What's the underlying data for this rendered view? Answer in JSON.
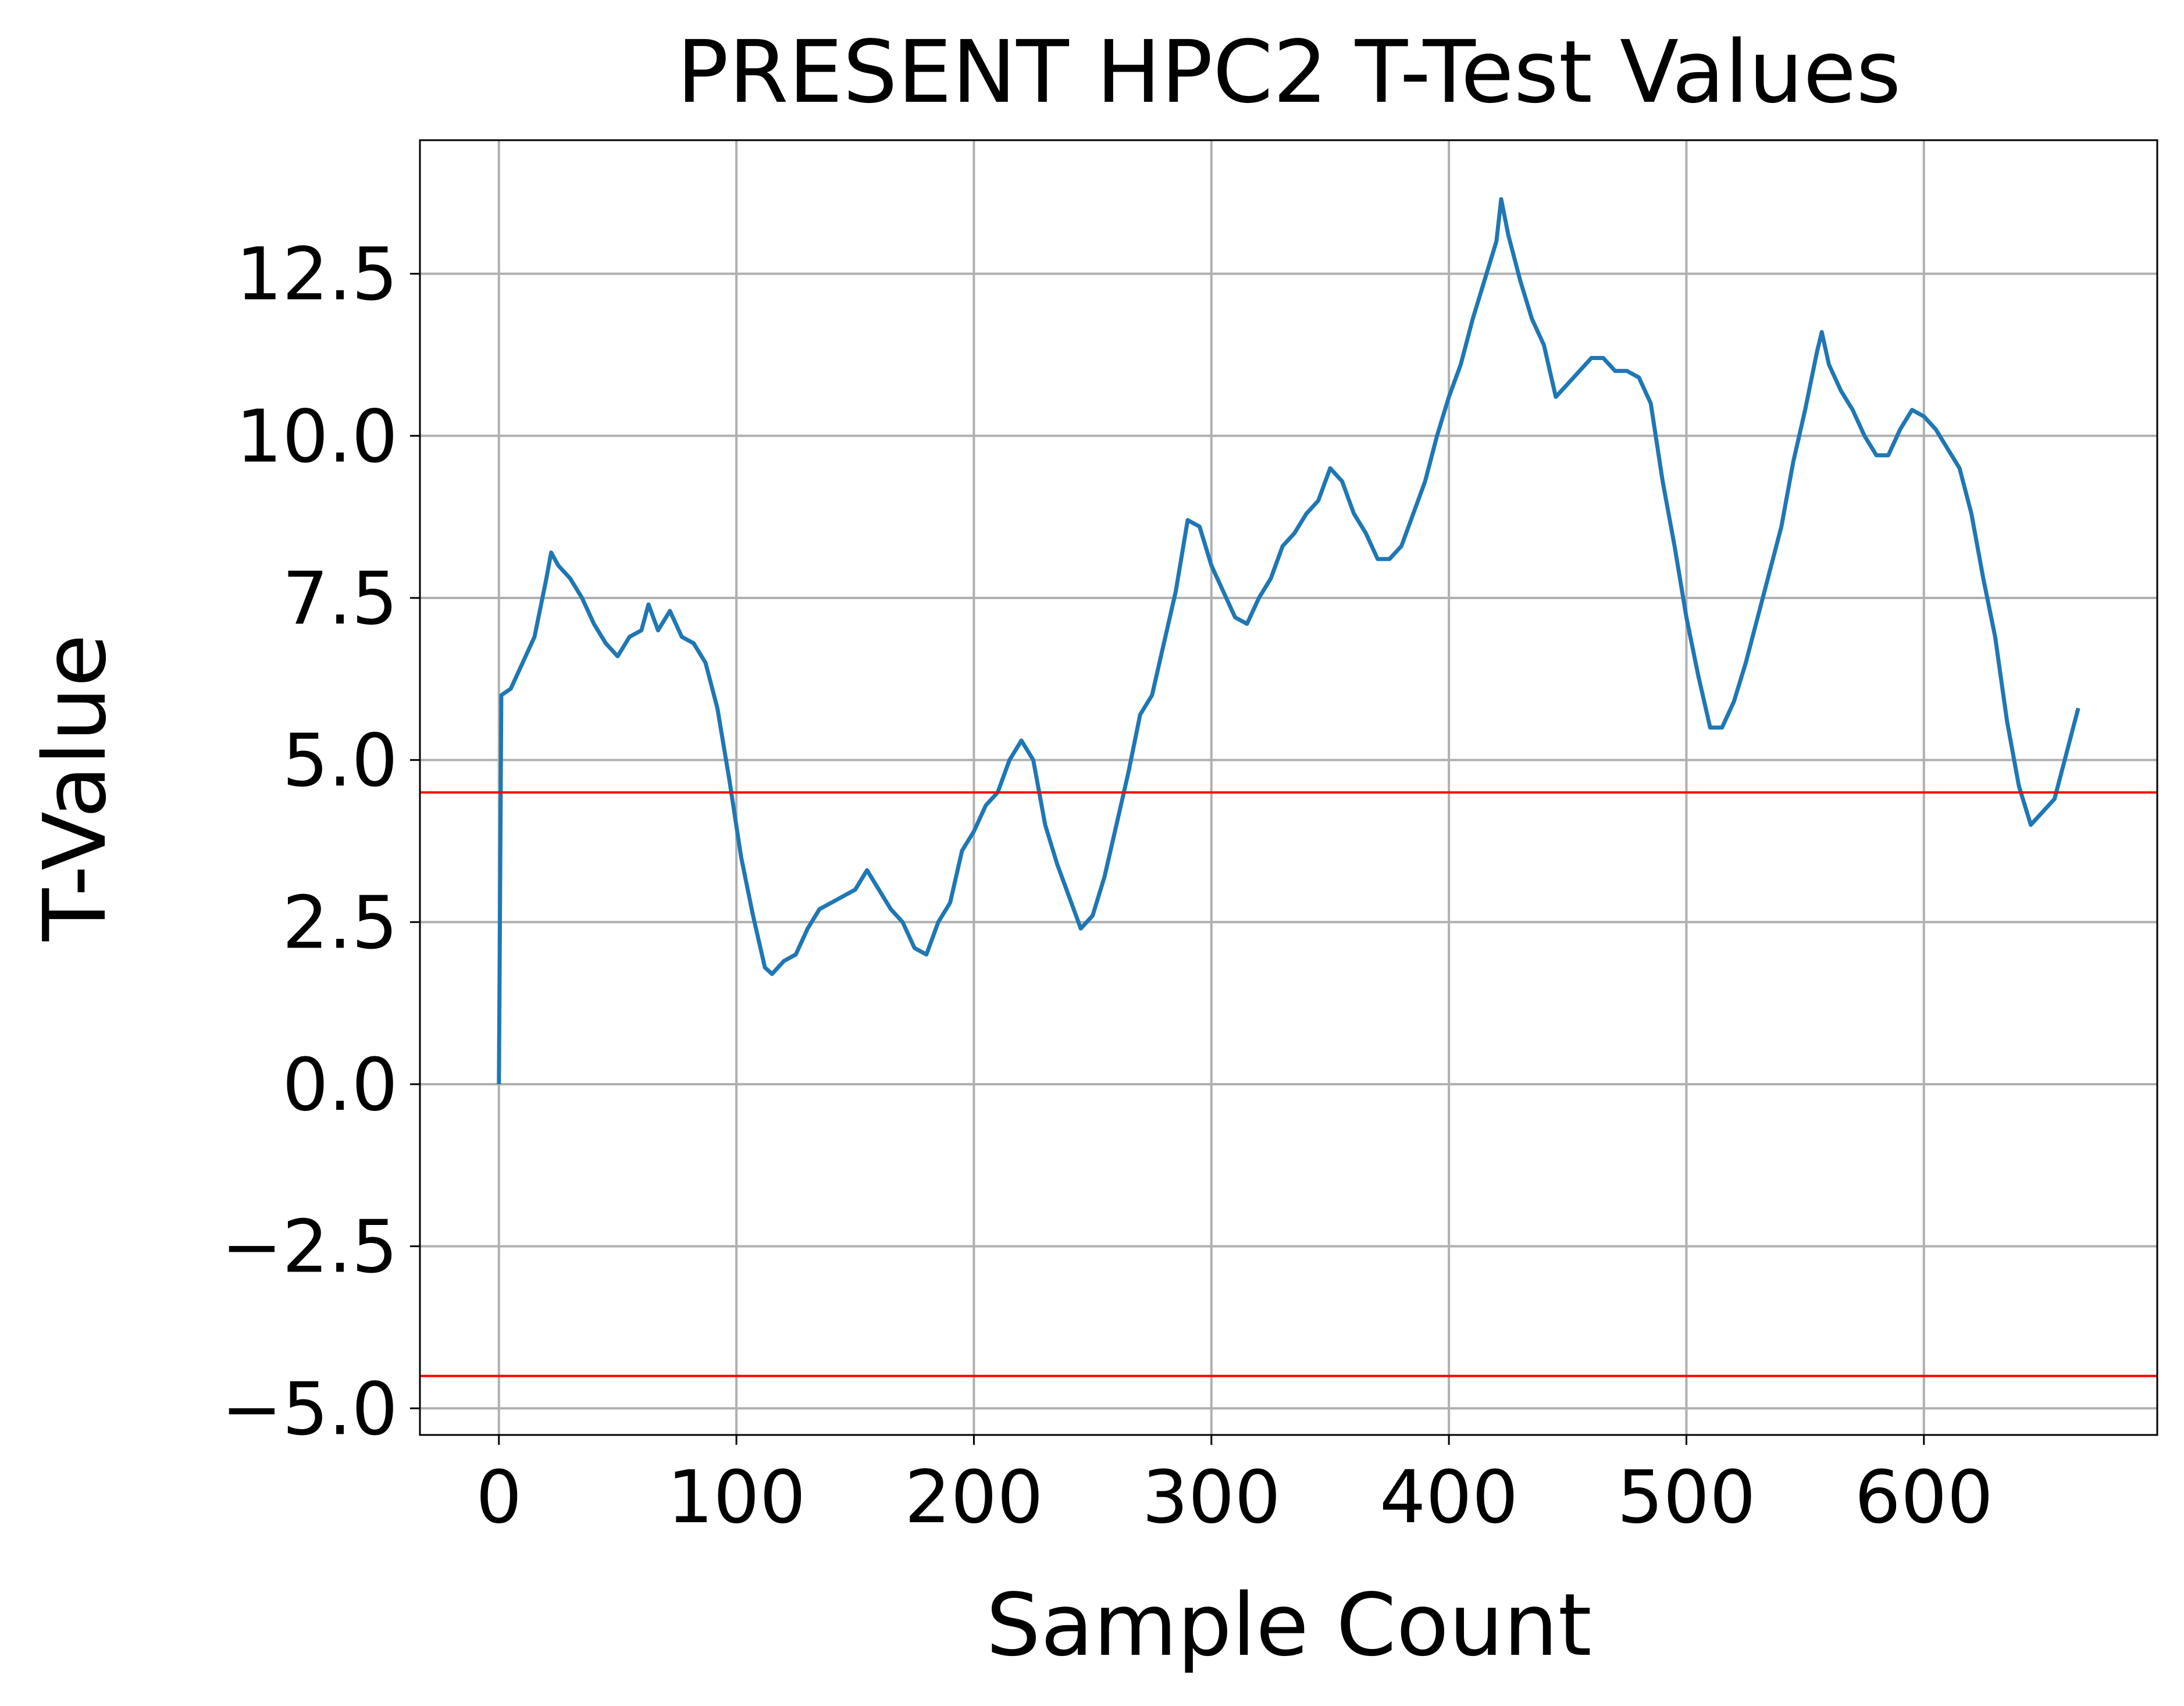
{
  "chart_data": {
    "type": "line",
    "title": "PRESENT HPC2 T-Test Values",
    "xlabel": "Sample Count",
    "ylabel": "T-Value",
    "x": [
      0,
      1,
      5,
      10,
      15,
      20,
      22,
      25,
      30,
      35,
      40,
      45,
      50,
      55,
      60,
      63,
      67,
      72,
      77,
      82,
      87,
      92,
      97,
      102,
      107,
      112,
      115,
      120,
      125,
      130,
      135,
      140,
      145,
      150,
      155,
      160,
      165,
      170,
      175,
      180,
      185,
      190,
      195,
      200,
      205,
      210,
      215,
      220,
      225,
      230,
      235,
      240,
      245,
      250,
      255,
      260,
      265,
      270,
      275,
      280,
      285,
      290,
      295,
      300,
      305,
      310,
      315,
      320,
      325,
      330,
      335,
      340,
      345,
      350,
      355,
      360,
      365,
      370,
      375,
      380,
      385,
      390,
      395,
      400,
      405,
      410,
      415,
      420,
      422,
      425,
      430,
      435,
      440,
      445,
      450,
      455,
      460,
      465,
      470,
      475,
      480,
      485,
      490,
      495,
      500,
      505,
      510,
      515,
      520,
      525,
      530,
      535,
      540,
      545,
      550,
      555,
      557,
      560,
      565,
      570,
      575,
      580,
      585,
      590,
      595,
      600,
      605,
      610,
      615,
      620,
      625,
      630,
      635,
      640,
      645,
      650,
      655,
      660,
      665
    ],
    "values": [
      0,
      6.0,
      6.1,
      6.5,
      6.9,
      7.8,
      8.2,
      8.0,
      7.8,
      7.5,
      7.1,
      6.8,
      6.6,
      6.9,
      7.0,
      7.4,
      7.0,
      7.3,
      6.9,
      6.8,
      6.5,
      5.8,
      4.7,
      3.5,
      2.6,
      1.8,
      1.7,
      1.9,
      2.0,
      2.4,
      2.7,
      2.8,
      2.9,
      3.0,
      3.3,
      3.0,
      2.7,
      2.5,
      2.1,
      2.0,
      2.5,
      2.8,
      3.6,
      3.9,
      4.3,
      4.5,
      5.0,
      5.3,
      5.0,
      4.0,
      3.4,
      2.9,
      2.4,
      2.6,
      3.2,
      4.0,
      4.8,
      5.7,
      6.0,
      6.8,
      7.6,
      8.7,
      8.6,
      8.0,
      7.6,
      7.2,
      7.1,
      7.5,
      7.8,
      8.3,
      8.5,
      8.8,
      9.0,
      9.5,
      9.3,
      8.8,
      8.5,
      8.1,
      8.1,
      8.3,
      8.8,
      9.3,
      10.0,
      10.6,
      11.1,
      11.8,
      12.4,
      13.0,
      13.65,
      13.1,
      12.4,
      11.8,
      11.4,
      10.6,
      10.8,
      11.0,
      11.2,
      11.2,
      11.0,
      11.0,
      10.9,
      10.5,
      9.3,
      8.3,
      7.2,
      6.3,
      5.5,
      5.5,
      5.9,
      6.5,
      7.2,
      7.9,
      8.6,
      9.6,
      10.4,
      11.3,
      11.6,
      11.1,
      10.7,
      10.4,
      10.0,
      9.7,
      9.7,
      10.1,
      10.4,
      10.3,
      10.1,
      9.8,
      9.5,
      8.8,
      7.8,
      6.9,
      5.6,
      4.6,
      4.0,
      4.2,
      4.4,
      5.1,
      5.8
    ],
    "color": "#1f77b4",
    "hlines": [
      {
        "value": 4.5,
        "color": "red"
      },
      {
        "value": -4.5,
        "color": "red"
      }
    ],
    "xlim": [
      -33.25,
      698.25
    ],
    "ylim": [
      -5.41,
      14.56
    ],
    "xticks": [
      0,
      100,
      200,
      300,
      400,
      500,
      600
    ],
    "yticks": [
      {
        "value": -5,
        "label": "−5.0"
      },
      {
        "value": -2.5,
        "label": "−2.5"
      },
      {
        "value": 0,
        "label": "0.0"
      },
      {
        "value": 2.5,
        "label": "2.5"
      },
      {
        "value": 5,
        "label": "5.0"
      },
      {
        "value": 7.5,
        "label": "7.5"
      },
      {
        "value": 10,
        "label": "10.0"
      },
      {
        "value": 12.5,
        "label": "12.5"
      }
    ],
    "grid": true
  }
}
